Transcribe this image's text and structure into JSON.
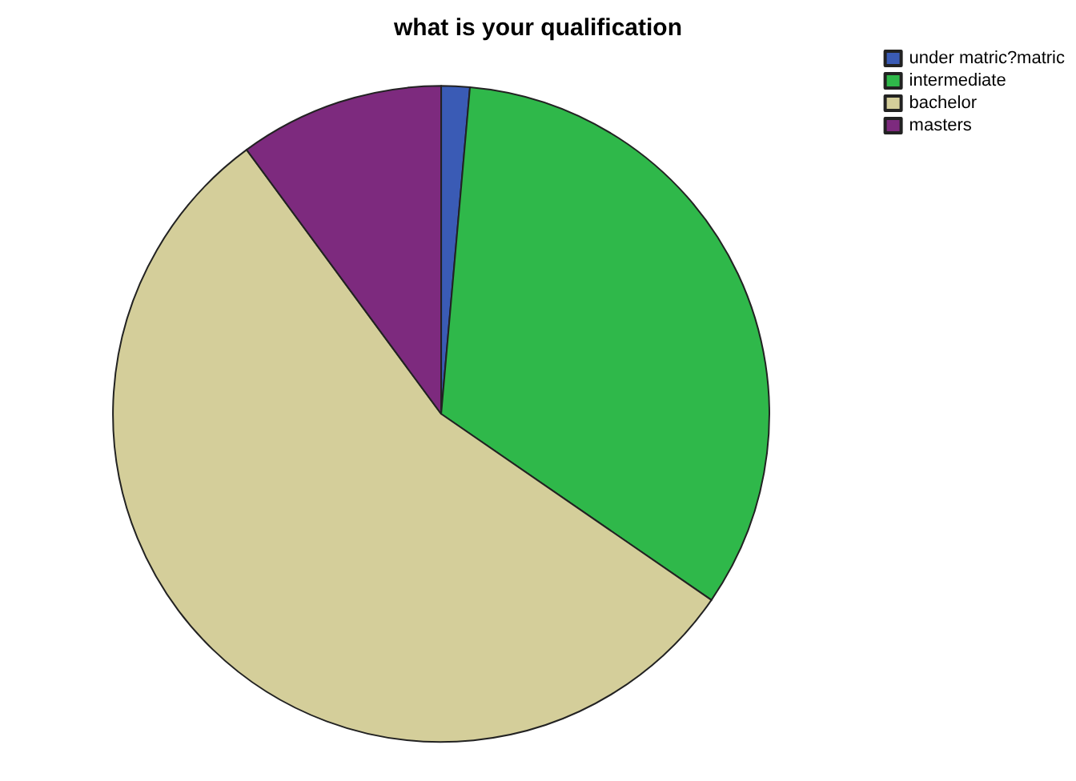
{
  "chart_data": {
    "type": "pie",
    "title": "what is your qualification",
    "categories": [
      "under matric?matric",
      "intermediate",
      "bachelor",
      "masters"
    ],
    "values": [
      1.4,
      33.2,
      55.3,
      10.1
    ],
    "colors": [
      "#3a5bb5",
      "#2fb84a",
      "#d4ce9a",
      "#7d2a7e"
    ],
    "legend": "top right"
  }
}
